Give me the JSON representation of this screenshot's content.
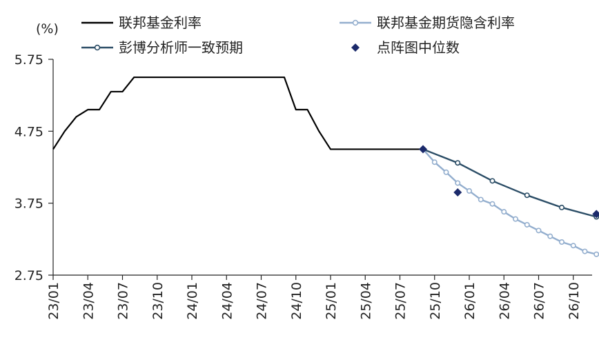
{
  "chart_data": {
    "type": "line",
    "unit_label": "(%)",
    "ylim": [
      2.75,
      5.75
    ],
    "yticks": [
      "5.75",
      "4.75",
      "3.75",
      "2.75"
    ],
    "ytick_values": [
      5.75,
      4.75,
      3.75,
      2.75
    ],
    "x_range": [
      "2023-01",
      "2026-12"
    ],
    "xticks": [
      "23/01",
      "23/04",
      "23/07",
      "23/10",
      "24/01",
      "24/04",
      "24/07",
      "24/10",
      "25/01",
      "25/04",
      "25/07",
      "25/10",
      "26/01",
      "26/04",
      "26/07",
      "26/10"
    ],
    "xtick_dates": [
      "2023-01",
      "2023-04",
      "2023-07",
      "2023-10",
      "2024-01",
      "2024-04",
      "2024-07",
      "2024-10",
      "2025-01",
      "2025-04",
      "2025-07",
      "2025-10",
      "2026-01",
      "2026-04",
      "2026-07",
      "2026-10"
    ],
    "legend_placement": "top",
    "series": [
      {
        "name": "联邦基金利率",
        "color": "#000000",
        "markers": false,
        "points": [
          [
            "2023-01",
            4.5
          ],
          [
            "2023-02",
            4.75
          ],
          [
            "2023-03",
            4.95
          ],
          [
            "2023-04",
            5.05
          ],
          [
            "2023-05",
            5.05
          ],
          [
            "2023-06",
            5.3
          ],
          [
            "2023-07",
            5.3
          ],
          [
            "2023-08",
            5.5
          ],
          [
            "2023-12",
            5.5
          ],
          [
            "2024-06",
            5.5
          ],
          [
            "2024-09",
            5.5
          ],
          [
            "2024-10",
            5.05
          ],
          [
            "2024-11",
            5.05
          ],
          [
            "2024-12",
            4.75
          ],
          [
            "2025-01",
            4.5
          ],
          [
            "2025-06",
            4.5
          ],
          [
            "2025-09",
            4.5
          ]
        ]
      },
      {
        "name": "联邦基金期货隐含利率",
        "color": "#93aece",
        "markers": true,
        "points": [
          [
            "2025-09",
            4.5
          ],
          [
            "2025-10",
            4.32
          ],
          [
            "2025-11",
            4.18
          ],
          [
            "2025-12",
            4.03
          ],
          [
            "2026-01",
            3.92
          ],
          [
            "2026-02",
            3.8
          ],
          [
            "2026-03",
            3.74
          ],
          [
            "2026-04",
            3.63
          ],
          [
            "2026-05",
            3.53
          ],
          [
            "2026-06",
            3.45
          ],
          [
            "2026-07",
            3.37
          ],
          [
            "2026-08",
            3.29
          ],
          [
            "2026-09",
            3.21
          ],
          [
            "2026-10",
            3.16
          ],
          [
            "2026-11",
            3.08
          ],
          [
            "2026-12",
            3.04
          ]
        ]
      },
      {
        "name": "彭博分析师一致预期",
        "color": "#2b4d66",
        "markers": true,
        "points": [
          [
            "2025-09",
            4.5
          ],
          [
            "2025-12",
            4.31
          ],
          [
            "2026-03",
            4.06
          ],
          [
            "2026-06",
            3.86
          ],
          [
            "2026-09",
            3.69
          ],
          [
            "2026-12",
            3.56
          ]
        ]
      }
    ],
    "scatter": {
      "name": "点阵图中位数",
      "color": "#1b2a6b",
      "points": [
        [
          "2025-09",
          4.5
        ],
        [
          "2025-12",
          3.9
        ],
        [
          "2026-12",
          3.6
        ]
      ]
    }
  }
}
